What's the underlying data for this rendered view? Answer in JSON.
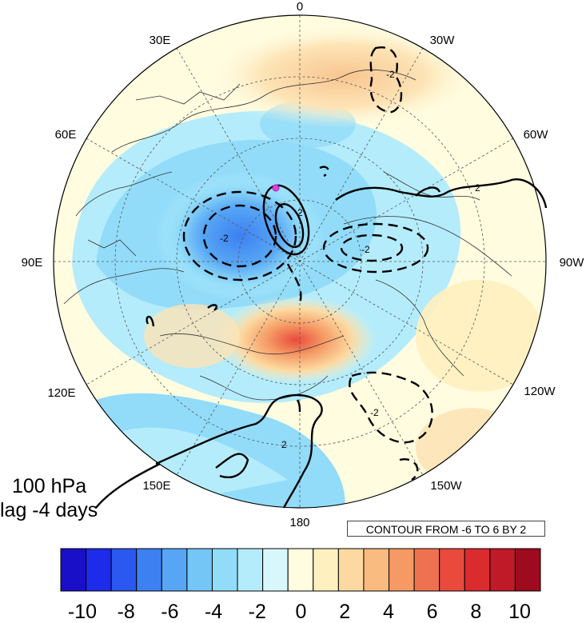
{
  "longitude_labels": [
    "0",
    "30W",
    "60W",
    "90W",
    "120W",
    "150W",
    "180",
    "150E",
    "120E",
    "90E",
    "60E",
    "30E"
  ],
  "panel": {
    "level": "100 hPa",
    "lag": "lag -4 days"
  },
  "contour_info": "CONTOUR FROM -6 TO 6 BY 2",
  "contour_line_labels": [
    "-2",
    "2",
    "-2",
    "2",
    "-2",
    "-2",
    "2"
  ],
  "colorbar": {
    "tick_labels": [
      "-10",
      "-8",
      "-6",
      "-4",
      "-2",
      "0",
      "2",
      "4",
      "6",
      "8",
      "10"
    ],
    "colors": [
      "#1a0fc8",
      "#1d2bea",
      "#2a58f0",
      "#3d80f2",
      "#56a6f5",
      "#74c6f7",
      "#92dcf9",
      "#b4ecfb",
      "#d8f7fd",
      "#fffce0",
      "#fff0bf",
      "#fcd9a1",
      "#f9bb80",
      "#f59a64",
      "#ef7250",
      "#e94a3c",
      "#da2b2f",
      "#c01a28",
      "#9e0a1e"
    ]
  },
  "colors": {
    "land_outline": "#333333",
    "contour": "#000000",
    "marker": "#e040e0"
  }
}
